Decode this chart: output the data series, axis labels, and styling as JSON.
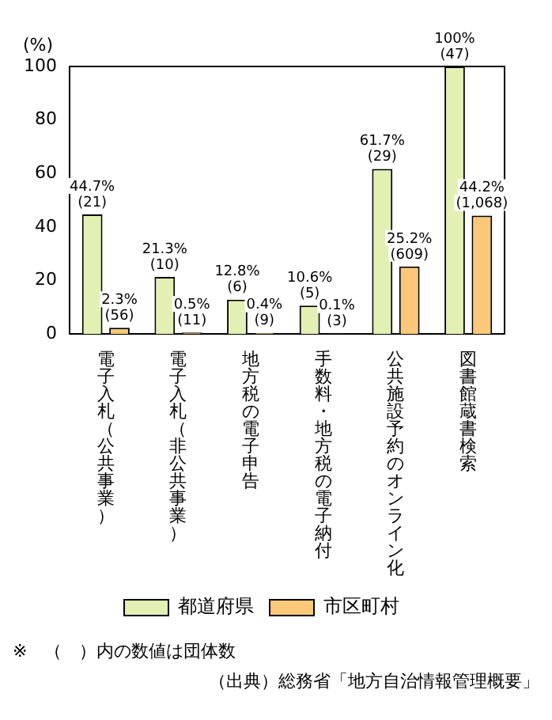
{
  "chart_data": {
    "type": "bar",
    "ylabel": "(%)",
    "categories": [
      "電子入札（公共事業）",
      "電子入札（非公共事業）",
      "地方税の電子申告",
      "手数料・地方税の電子納付",
      "公共施設予約のオンライン化",
      "図書館蔵書検索"
    ],
    "series": [
      {
        "name": "都道府県",
        "color": "#e2f0b4",
        "values": [
          44.7,
          21.3,
          12.8,
          10.6,
          61.7,
          100
        ],
        "value_labels": [
          "44.7%\n(21)",
          "21.3%\n(10)",
          "12.8%\n(6)",
          "10.6%\n(5)",
          "61.7%\n(29)",
          "100%\n(47)"
        ]
      },
      {
        "name": "市区町村",
        "color": "#fac878",
        "values": [
          2.3,
          0.5,
          0.4,
          0.1,
          25.2,
          44.2
        ],
        "value_labels": [
          "2.3%\n(56)",
          "0.5%\n(11)",
          "0.4%\n(9)",
          "0.1%\n(3)",
          "25.2%\n(609)",
          "44.2%\n(1,068)"
        ]
      }
    ],
    "ylim": [
      0,
      100
    ],
    "yticks": [
      0,
      20,
      40,
      60,
      80,
      100
    ],
    "grid": false,
    "legend": "bottom",
    "annotations": [
      "※　（　）内の数値は団体数",
      "（出典）総務省「地方自治情報管理概要」"
    ]
  }
}
